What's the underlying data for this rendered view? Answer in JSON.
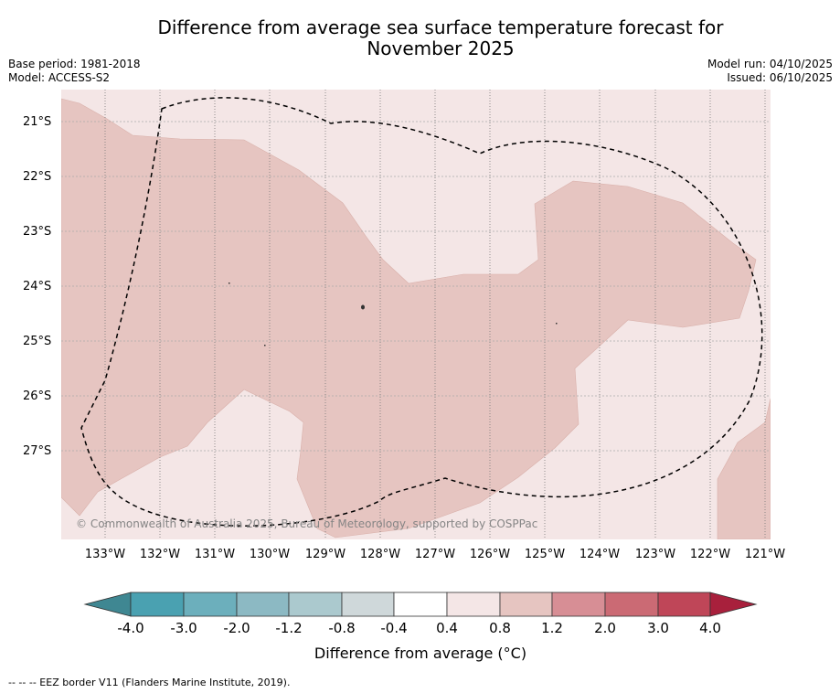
{
  "title": {
    "line1": "Difference from average sea surface temperature forecast for",
    "line2": "November 2025"
  },
  "meta_left": {
    "base_period": "Base period: 1981-2018",
    "model": "Model: ACCESS-S2"
  },
  "meta_right": {
    "model_run": "Model run: 04/10/2025",
    "issued": "Issued: 06/10/2025"
  },
  "map": {
    "lat_labels": [
      "21°S",
      "22°S",
      "23°S",
      "24°S",
      "25°S",
      "26°S",
      "27°S"
    ],
    "lon_labels": [
      "133°W",
      "132°W",
      "131°W",
      "130°W",
      "129°W",
      "128°W",
      "127°W",
      "126°W",
      "125°W",
      "124°W",
      "123°W",
      "122°W",
      "121°W"
    ],
    "copyright": "© Commonwealth of Australia 2025, Bureau of Meteorology, supported by COSPPac",
    "colors": {
      "background_anomaly": "#f4e6e6",
      "warm_anomaly": "#e6c5c1",
      "eez_line": "#000000"
    }
  },
  "colorbar": {
    "labels": [
      "-4.0",
      "-3.0",
      "-2.0",
      "-1.2",
      "-0.8",
      "-0.4",
      "0.4",
      "0.8",
      "1.2",
      "2.0",
      "3.0",
      "4.0"
    ],
    "colors": [
      "#3f8792",
      "#4aa1b1",
      "#6cafbc",
      "#8cb9c3",
      "#abc9ce",
      "#cfd8da",
      "#ffffff",
      "#f4e6e6",
      "#e6c5c1",
      "#d78e95",
      "#cb6a74",
      "#bf4658",
      "#a8203c"
    ],
    "title": "Difference from average (°C)"
  },
  "footer": "--  --  -- EEZ border V11 (Flanders Marine Institute, 2019)."
}
